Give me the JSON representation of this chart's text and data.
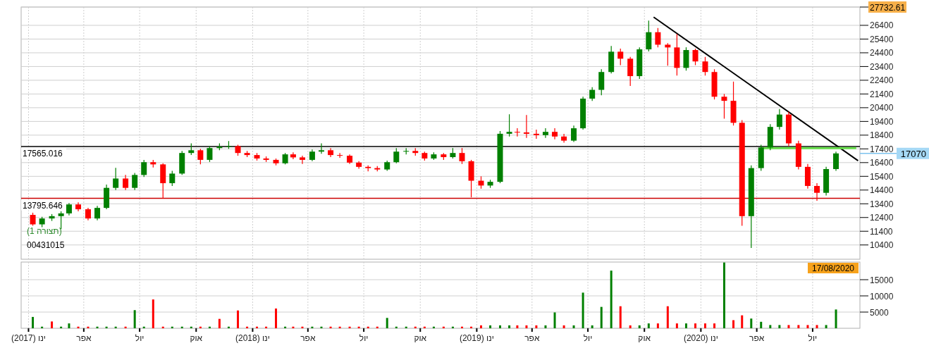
{
  "chart_data": [
    {
      "type": "candlestick",
      "xlim": [
        "2016-12-20",
        "2020-09-16"
      ],
      "ylim": [
        9360,
        27732.61
      ],
      "xticks": [
        "2017-01-01",
        "2017-04-01",
        "2017-07-01",
        "2017-10-01",
        "2018-01-01",
        "2018-04-01",
        "2018-07-01",
        "2018-10-01",
        "2019-01-01",
        "2019-04-01",
        "2019-07-01",
        "2019-10-01",
        "2020-01-01",
        "2020-04-01",
        "2020-07-01"
      ],
      "yticks": [
        10400,
        11400,
        12400,
        13400,
        14400,
        15400,
        16400,
        17400,
        18400,
        19400,
        20400,
        21400,
        22400,
        23400,
        24400,
        25400,
        26400,
        {
          "value": 27732.61,
          "label": "27732.61"
        }
      ],
      "tick_labels": "y",
      "grid": true,
      "x": [
        "2017-01-08",
        "2017-01-23",
        "2017-02-08",
        "2017-02-23",
        "2017-03-08",
        "2017-03-23",
        "2017-04-08",
        "2017-04-23",
        "2017-05-08",
        "2017-05-23",
        "2017-06-08",
        "2017-06-23",
        "2017-07-08",
        "2017-07-23",
        "2017-08-08",
        "2017-08-23",
        "2017-09-08",
        "2017-09-23",
        "2017-10-08",
        "2017-10-23",
        "2017-11-08",
        "2017-11-23",
        "2017-12-08",
        "2017-12-23",
        "2018-01-08",
        "2018-01-23",
        "2018-02-08",
        "2018-02-23",
        "2018-03-08",
        "2018-03-23",
        "2018-04-08",
        "2018-04-23",
        "2018-05-08",
        "2018-05-23",
        "2018-06-08",
        "2018-06-23",
        "2018-07-08",
        "2018-07-23",
        "2018-08-08",
        "2018-08-23",
        "2018-09-08",
        "2018-09-23",
        "2018-10-08",
        "2018-10-23",
        "2018-11-08",
        "2018-11-23",
        "2018-12-08",
        "2018-12-23",
        "2019-01-08",
        "2019-01-23",
        "2019-02-08",
        "2019-02-23",
        "2019-03-08",
        "2019-03-23",
        "2019-04-08",
        "2019-04-23",
        "2019-05-08",
        "2019-05-23",
        "2019-06-08",
        "2019-06-23",
        "2019-07-08",
        "2019-07-23",
        "2019-08-08",
        "2019-08-23",
        "2019-09-08",
        "2019-09-23",
        "2019-10-08",
        "2019-10-23",
        "2019-11-08",
        "2019-11-23",
        "2019-12-08",
        "2019-12-23",
        "2020-01-08",
        "2020-01-23",
        "2020-02-08",
        "2020-02-23",
        "2020-03-08",
        "2020-03-23",
        "2020-04-08",
        "2020-04-23",
        "2020-05-08",
        "2020-05-23",
        "2020-06-08",
        "2020-06-23",
        "2020-07-08",
        "2020-07-23",
        "2020-08-08"
      ],
      "ohlc": [
        [
          12590,
          12750,
          11800,
          11900
        ],
        [
          11900,
          12450,
          11700,
          12330
        ],
        [
          12330,
          12650,
          12150,
          12500
        ],
        [
          12500,
          12850,
          11560,
          12700
        ],
        [
          12700,
          13450,
          12550,
          13350
        ],
        [
          13350,
          13500,
          12850,
          13000
        ],
        [
          13000,
          13100,
          12200,
          12330
        ],
        [
          12330,
          13250,
          12200,
          13100
        ],
        [
          13100,
          14800,
          13000,
          14560
        ],
        [
          14560,
          16020,
          14400,
          15240
        ],
        [
          15240,
          15500,
          14400,
          14560
        ],
        [
          14560,
          15650,
          14400,
          15500
        ],
        [
          15500,
          16600,
          15350,
          16430
        ],
        [
          16430,
          16600,
          16050,
          16270
        ],
        [
          16270,
          16350,
          13790,
          14900
        ],
        [
          14900,
          15800,
          14700,
          15600
        ],
        [
          15600,
          17250,
          15500,
          17100
        ],
        [
          17100,
          17800,
          16950,
          17300
        ],
        [
          17300,
          17400,
          16270,
          16600
        ],
        [
          16600,
          17600,
          16450,
          17460
        ],
        [
          17460,
          17800,
          17300,
          17560
        ],
        [
          17560,
          17970,
          17400,
          17600
        ],
        [
          17600,
          17700,
          16900,
          17100
        ],
        [
          17100,
          17250,
          16800,
          16950
        ],
        [
          16950,
          17100,
          16550,
          16700
        ],
        [
          16700,
          16850,
          16450,
          16600
        ],
        [
          16600,
          16700,
          16200,
          16350
        ],
        [
          16350,
          17100,
          16270,
          17000
        ],
        [
          17000,
          17150,
          16650,
          16780
        ],
        [
          16780,
          16900,
          16300,
          16600
        ],
        [
          16600,
          17350,
          16500,
          17200
        ],
        [
          17200,
          17800,
          17050,
          17300
        ],
        [
          17300,
          17450,
          16800,
          16950
        ],
        [
          16950,
          17100,
          16750,
          16900
        ],
        [
          16900,
          17000,
          16300,
          16400
        ],
        [
          16400,
          16500,
          15950,
          16090
        ],
        [
          16090,
          16200,
          15760,
          16000
        ],
        [
          16000,
          16150,
          15760,
          15900
        ],
        [
          15900,
          16550,
          15800,
          16430
        ],
        [
          16430,
          17460,
          16350,
          17200
        ],
        [
          17200,
          17460,
          17000,
          17250
        ],
        [
          17250,
          17460,
          16900,
          17100
        ],
        [
          17100,
          17200,
          16550,
          16700
        ],
        [
          16700,
          17150,
          16600,
          17000
        ],
        [
          17000,
          17100,
          16600,
          16800
        ],
        [
          16800,
          17460,
          16700,
          17100
        ],
        [
          17100,
          17460,
          16300,
          16500
        ],
        [
          16500,
          16600,
          13870,
          15080
        ],
        [
          15080,
          15400,
          14500,
          14730
        ],
        [
          14730,
          15150,
          14560,
          15000
        ],
        [
          15000,
          18700,
          14900,
          18500
        ],
        [
          18500,
          19920,
          18300,
          18640
        ],
        [
          18640,
          18900,
          18300,
          18600
        ],
        [
          18600,
          19870,
          18200,
          18500
        ],
        [
          18500,
          18800,
          18130,
          18400
        ],
        [
          18400,
          18900,
          18200,
          18640
        ],
        [
          18640,
          18900,
          18100,
          18300
        ],
        [
          18300,
          18500,
          17850,
          18000
        ],
        [
          18000,
          19100,
          17900,
          18900
        ],
        [
          18900,
          21200,
          18800,
          21060
        ],
        [
          21060,
          21900,
          20900,
          21700
        ],
        [
          21700,
          23200,
          21300,
          23000
        ],
        [
          23000,
          24900,
          22900,
          24480
        ],
        [
          24480,
          24700,
          23500,
          23970
        ],
        [
          23970,
          24100,
          21980,
          22700
        ],
        [
          22700,
          24800,
          22500,
          24650
        ],
        [
          24650,
          26740,
          24500,
          25900
        ],
        [
          25900,
          26200,
          24800,
          24990
        ],
        [
          24990,
          25100,
          23460,
          24790
        ],
        [
          24790,
          25770,
          22740,
          23300
        ],
        [
          23300,
          24800,
          23100,
          24600
        ],
        [
          24600,
          24700,
          23500,
          23770
        ],
        [
          23770,
          24100,
          22740,
          23000
        ],
        [
          23000,
          23200,
          21000,
          21200
        ],
        [
          21200,
          21400,
          19600,
          20900
        ],
        [
          20900,
          22300,
          19100,
          19300
        ],
        [
          19300,
          19500,
          11800,
          12500
        ],
        [
          12500,
          16200,
          10180,
          16000
        ],
        [
          16000,
          17700,
          15800,
          17500
        ],
        [
          17500,
          19200,
          17300,
          19000
        ],
        [
          19000,
          20300,
          18800,
          19900
        ],
        [
          19900,
          20100,
          17600,
          17800
        ],
        [
          17800,
          18000,
          15900,
          16090
        ],
        [
          16090,
          16300,
          14500,
          14700
        ],
        [
          14700,
          14900,
          13620,
          14200
        ],
        [
          14200,
          16100,
          14000,
          15930
        ],
        [
          15930,
          17200,
          15800,
          17070
        ]
      ],
      "series": [
        {
          "type": "line",
          "color": "#000000",
          "x": [
            "2019-10-16",
            "2020-09-13"
          ],
          "values": [
            27000,
            16540
          ]
        },
        {
          "type": "line",
          "color": "#66e04a",
          "x": [
            "2020-04-07",
            "2020-09-10"
          ],
          "values": [
            17460,
            17460
          ]
        }
      ],
      "ref_lines": [
        {
          "axis": "y",
          "value": 17565.016,
          "label": "17565.016",
          "color": "#000000"
        },
        {
          "axis": "y",
          "value": 13795.646,
          "label": "13795.646",
          "color": "#cc0000"
        }
      ],
      "annotations": [
        "(תצורה 1)",
        "00431015",
        "17070"
      ]
    },
    {
      "type": "bar",
      "xlim": [
        "2016-12-20",
        "2020-09-16"
      ],
      "ylim": [
        0,
        20440
      ],
      "xticks": [
        {
          "value": "2017-01-01",
          "label": "ינו (2017)"
        },
        {
          "value": "2017-04-01",
          "label": "אפר"
        },
        {
          "value": "2017-07-01",
          "label": "יול"
        },
        {
          "value": "2017-10-01",
          "label": "אוק"
        },
        {
          "value": "2018-01-01",
          "label": "ינו (2018)"
        },
        {
          "value": "2018-04-01",
          "label": "אפר"
        },
        {
          "value": "2018-07-01",
          "label": "יול"
        },
        {
          "value": "2018-10-01",
          "label": "אוק"
        },
        {
          "value": "2019-01-01",
          "label": "ינו (2019)"
        },
        {
          "value": "2019-04-01",
          "label": "אפר"
        },
        {
          "value": "2019-07-01",
          "label": "יול"
        },
        {
          "value": "2019-10-01",
          "label": "אוק"
        },
        {
          "value": "2020-01-01",
          "label": "ינו (2020)"
        },
        {
          "value": "2020-04-01",
          "label": "אפר"
        },
        {
          "value": "2020-07-01",
          "label": "יול"
        }
      ],
      "yticks": [
        5000,
        10000,
        15000
      ],
      "grid": true,
      "x": [
        "2017-01-08",
        "2017-01-23",
        "2017-02-08",
        "2017-02-23",
        "2017-03-08",
        "2017-03-23",
        "2017-04-08",
        "2017-04-23",
        "2017-05-08",
        "2017-05-23",
        "2017-06-08",
        "2017-06-23",
        "2017-07-08",
        "2017-07-23",
        "2017-08-08",
        "2017-08-23",
        "2017-09-08",
        "2017-09-23",
        "2017-10-08",
        "2017-10-23",
        "2017-11-08",
        "2017-11-23",
        "2017-12-08",
        "2017-12-23",
        "2018-01-08",
        "2018-01-23",
        "2018-02-08",
        "2018-02-23",
        "2018-03-08",
        "2018-03-23",
        "2018-04-08",
        "2018-04-23",
        "2018-05-08",
        "2018-05-23",
        "2018-06-08",
        "2018-06-23",
        "2018-07-08",
        "2018-07-23",
        "2018-08-08",
        "2018-08-23",
        "2018-09-08",
        "2018-09-23",
        "2018-10-08",
        "2018-10-23",
        "2018-11-08",
        "2018-11-23",
        "2018-12-08",
        "2018-12-23",
        "2019-01-08",
        "2019-01-23",
        "2019-02-08",
        "2019-02-23",
        "2019-03-08",
        "2019-03-23",
        "2019-04-08",
        "2019-04-23",
        "2019-05-08",
        "2019-05-23",
        "2019-06-08",
        "2019-06-23",
        "2019-07-08",
        "2019-07-23",
        "2019-08-08",
        "2019-08-23",
        "2019-09-08",
        "2019-09-23",
        "2019-10-08",
        "2019-10-23",
        "2019-11-08",
        "2019-11-23",
        "2019-12-08",
        "2019-12-23",
        "2020-01-08",
        "2020-01-23",
        "2020-02-08",
        "2020-02-23",
        "2020-03-08",
        "2020-03-23",
        "2020-04-08",
        "2020-04-23",
        "2020-05-08",
        "2020-05-23",
        "2020-06-08",
        "2020-06-23",
        "2020-07-08",
        "2020-07-23",
        "2020-08-08"
      ],
      "values": [
        3500,
        500,
        2100,
        500,
        1500,
        500,
        500,
        500,
        500,
        500,
        500,
        5600,
        500,
        8900,
        500,
        500,
        500,
        500,
        500,
        500,
        2900,
        500,
        5500,
        500,
        500,
        500,
        6100,
        500,
        500,
        500,
        500,
        500,
        500,
        500,
        500,
        500,
        500,
        500,
        3200,
        500,
        500,
        500,
        500,
        500,
        500,
        500,
        500,
        500,
        900,
        900,
        900,
        900,
        900,
        900,
        900,
        900,
        4900,
        900,
        900,
        11000,
        900,
        6600,
        17800,
        6800,
        900,
        900,
        1500,
        1500,
        6800,
        1500,
        1500,
        1500,
        1500,
        1500,
        20300,
        2500,
        4000,
        3000,
        2000,
        1000,
        1000,
        1000,
        1000,
        1000,
        1000,
        1000,
        5800
      ],
      "colors": [
        "#008000",
        "#008000",
        "#ff0000",
        "#008000",
        "#008000",
        "#ff0000",
        "#ff0000",
        "#008000",
        "#008000",
        "#008000",
        "#ff0000",
        "#008000",
        "#008000",
        "#ff0000",
        "#ff0000",
        "#008000",
        "#008000",
        "#008000",
        "#ff0000",
        "#008000",
        "#ff0000",
        "#008000",
        "#ff0000",
        "#ff0000",
        "#ff0000",
        "#ff0000",
        "#ff0000",
        "#008000",
        "#ff0000",
        "#ff0000",
        "#008000",
        "#008000",
        "#ff0000",
        "#ff0000",
        "#ff0000",
        "#ff0000",
        "#ff0000",
        "#ff0000",
        "#008000",
        "#008000",
        "#008000",
        "#ff0000",
        "#ff0000",
        "#008000",
        "#ff0000",
        "#008000",
        "#ff0000",
        "#ff0000",
        "#ff0000",
        "#008000",
        "#008000",
        "#008000",
        "#ff0000",
        "#ff0000",
        "#ff0000",
        "#008000",
        "#008000",
        "#ff0000",
        "#008000",
        "#008000",
        "#008000",
        "#008000",
        "#008000",
        "#ff0000",
        "#ff0000",
        "#008000",
        "#008000",
        "#ff0000",
        "#ff0000",
        "#ff0000",
        "#008000",
        "#ff0000",
        "#ff0000",
        "#ff0000",
        "#008000",
        "#ff0000",
        "#ff0000",
        "#008000",
        "#008000",
        "#008000",
        "#008000",
        "#ff0000",
        "#ff0000",
        "#ff0000",
        "#ff0000",
        "#008000",
        "#008000"
      ],
      "annotations": [
        "17/08/2020"
      ]
    }
  ]
}
